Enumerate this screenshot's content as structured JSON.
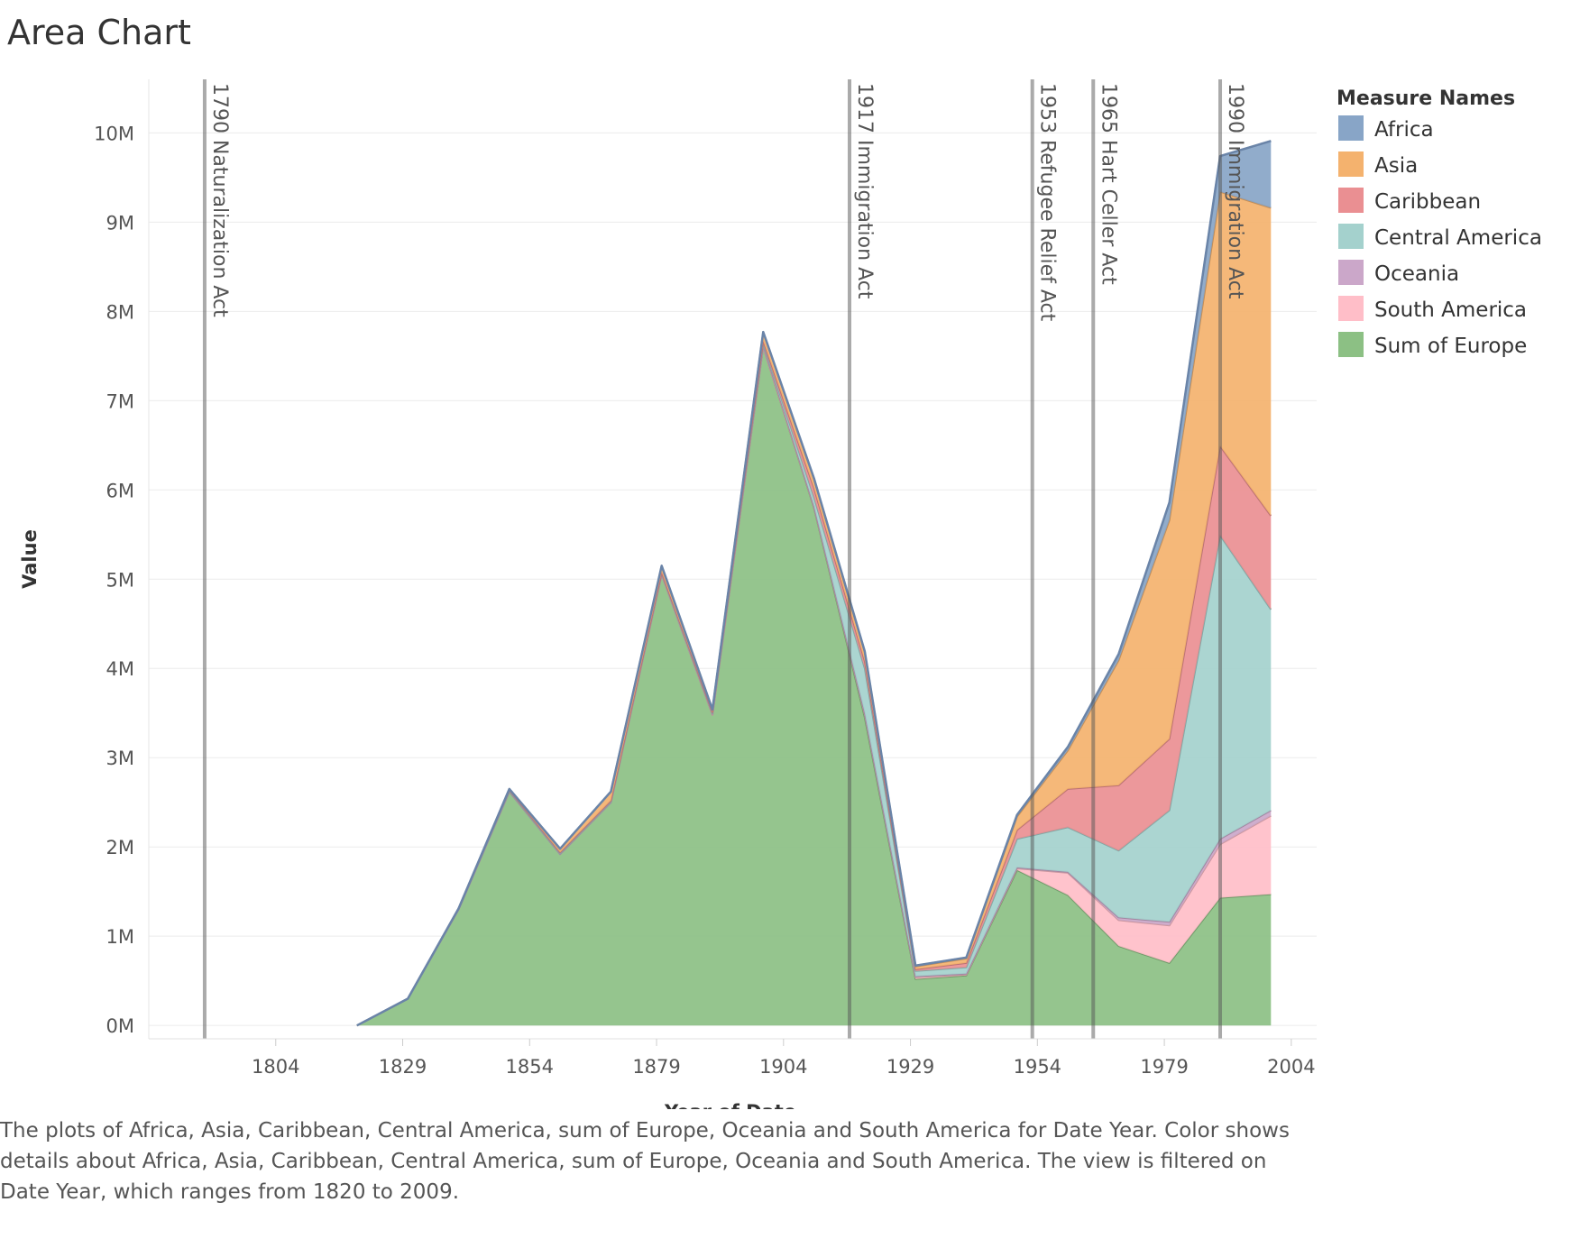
{
  "title": "Area Chart",
  "caption": "The plots of Africa, Asia, Caribbean, Central America, sum of Europe, Oceania and South America for Date Year.  Color shows details about Africa, Asia, Caribbean, Central America, sum of Europe, Oceania and South America. The view is filtered on Date Year, which ranges from 1820 to 2009.",
  "chart_data": {
    "type": "area",
    "stacked": true,
    "xlabel": "Year of Date",
    "ylabel": "Value",
    "xlim": [
      1779,
      2009
    ],
    "ylim": [
      -150000,
      10600000
    ],
    "xticks": [
      1804,
      1829,
      1854,
      1879,
      1904,
      1929,
      1954,
      1979,
      2004
    ],
    "yticks": [
      0,
      1000000,
      2000000,
      3000000,
      4000000,
      5000000,
      6000000,
      7000000,
      8000000,
      9000000,
      10000000
    ],
    "ytick_labels": [
      "0M",
      "1M",
      "2M",
      "3M",
      "4M",
      "5M",
      "6M",
      "7M",
      "8M",
      "9M",
      "10M"
    ],
    "grid": true,
    "legend_title": "Measure Names",
    "legend_position": "right",
    "x": [
      1820,
      1830,
      1840,
      1850,
      1860,
      1870,
      1880,
      1890,
      1900,
      1910,
      1920,
      1930,
      1940,
      1950,
      1960,
      1970,
      1980,
      1990,
      2000
    ],
    "series": [
      {
        "name": "Sum of Europe",
        "color": "#8cc084",
        "values": [
          0,
          300000,
          1300000,
          2620000,
          1920000,
          2500000,
          5050000,
          3480000,
          7600000,
          5800000,
          3450000,
          520000,
          560000,
          1740000,
          1460000,
          890000,
          700000,
          1430000,
          1470000
        ]
      },
      {
        "name": "South America",
        "color": "#ffbec8",
        "values": [
          0,
          0,
          0,
          0,
          0,
          0,
          0,
          0,
          0,
          10000,
          40000,
          20000,
          10000,
          20000,
          250000,
          290000,
          420000,
          600000,
          880000
        ]
      },
      {
        "name": "Oceania",
        "color": "#cba7c9",
        "values": [
          0,
          0,
          0,
          0,
          0,
          0,
          10000,
          10000,
          20000,
          10000,
          10000,
          10000,
          10000,
          10000,
          10000,
          30000,
          40000,
          60000,
          60000
        ]
      },
      {
        "name": "Central America",
        "color": "#a4d1cd",
        "values": [
          0,
          0,
          10000,
          10000,
          10000,
          10000,
          10000,
          10000,
          20000,
          100000,
          500000,
          60000,
          70000,
          320000,
          500000,
          750000,
          1250000,
          3400000,
          2250000
        ]
      },
      {
        "name": "Caribbean",
        "color": "#ea8f92",
        "values": [
          0,
          0,
          0,
          10000,
          10000,
          10000,
          10000,
          10000,
          30000,
          100000,
          80000,
          20000,
          50000,
          100000,
          430000,
          730000,
          800000,
          1000000,
          1050000
        ]
      },
      {
        "name": "Asia",
        "color": "#f4b26e",
        "values": [
          0,
          0,
          0,
          10000,
          40000,
          100000,
          70000,
          30000,
          100000,
          100000,
          100000,
          30000,
          50000,
          150000,
          430000,
          1400000,
          2450000,
          2850000,
          3450000
        ]
      },
      {
        "name": "Africa",
        "color": "#88a5c7",
        "values": [
          0,
          0,
          0,
          0,
          0,
          0,
          0,
          0,
          0,
          10000,
          10000,
          10000,
          10000,
          20000,
          40000,
          70000,
          200000,
          400000,
          750000
        ]
      }
    ],
    "annotations": [
      {
        "x": 1790,
        "label": "1790 Naturalization Act"
      },
      {
        "x": 1917,
        "label": "1917 Immigration Act"
      },
      {
        "x": 1953,
        "label": "1953 Refugee Relief Act"
      },
      {
        "x": 1965,
        "label": "1965 Hart Celler Act"
      },
      {
        "x": 1990,
        "label": "1990 Immigration Act"
      }
    ],
    "legend_order": [
      "Africa",
      "Asia",
      "Caribbean",
      "Central America",
      "Oceania",
      "South America",
      "Sum of Europe"
    ]
  }
}
